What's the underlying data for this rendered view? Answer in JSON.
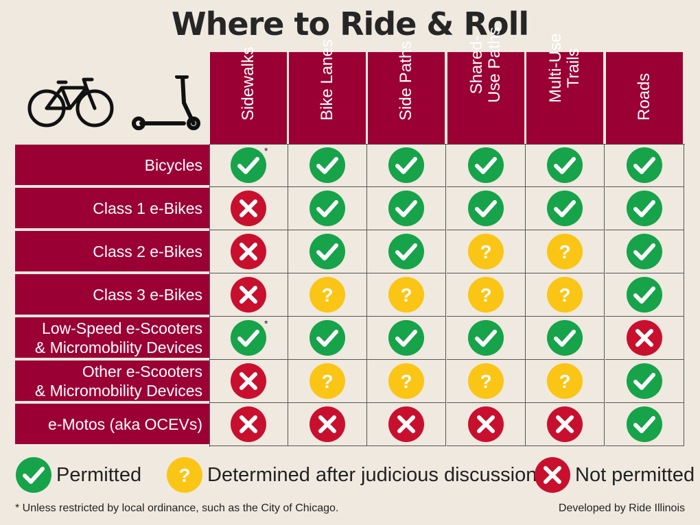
{
  "title": "Where to Ride & Roll",
  "columns": [
    "Sidewalks",
    "Bike Lanes",
    "Side Paths",
    "Shared-\nUse Paths",
    "Multi-Use\nTrails",
    "Roads"
  ],
  "rows": [
    {
      "label": "Bicycles",
      "status": [
        "yes",
        "yes",
        "yes",
        "yes",
        "yes",
        "yes"
      ],
      "asterisk": [
        true,
        false,
        false,
        false,
        false,
        false
      ]
    },
    {
      "label": "Class 1 e-Bikes",
      "status": [
        "no",
        "yes",
        "yes",
        "yes",
        "yes",
        "yes"
      ],
      "asterisk": [
        false,
        false,
        false,
        false,
        false,
        false
      ]
    },
    {
      "label": "Class 2 e-Bikes",
      "status": [
        "no",
        "yes",
        "yes",
        "maybe",
        "maybe",
        "yes"
      ],
      "asterisk": [
        false,
        false,
        false,
        false,
        false,
        false
      ]
    },
    {
      "label": "Class 3 e-Bikes",
      "status": [
        "no",
        "maybe",
        "maybe",
        "maybe",
        "maybe",
        "yes"
      ],
      "asterisk": [
        false,
        false,
        false,
        false,
        false,
        false
      ]
    },
    {
      "label": "Low-Speed e-Scooters\n& Micromobility Devices",
      "status": [
        "yes",
        "yes",
        "yes",
        "yes",
        "yes",
        "no"
      ],
      "asterisk": [
        true,
        false,
        false,
        false,
        false,
        false
      ]
    },
    {
      "label": "Other e-Scooters\n& Micromobility Devices",
      "status": [
        "no",
        "maybe",
        "maybe",
        "maybe",
        "maybe",
        "yes"
      ],
      "asterisk": [
        false,
        false,
        false,
        false,
        false,
        false
      ]
    },
    {
      "label": "e-Motos (aka OCEVs)",
      "status": [
        "no",
        "no",
        "no",
        "no",
        "no",
        "yes"
      ],
      "asterisk": [
        false,
        false,
        false,
        false,
        false,
        false
      ]
    }
  ],
  "asterisk_mark": "*",
  "legend": {
    "permitted": "Permitted",
    "maybe": "Determined after judicious discussion",
    "not_permitted": "Not permitted"
  },
  "footnote": "* Unless restricted by local ordinance, such as the City of Chicago.",
  "credit": "Developed by Ride Illinois",
  "icons": {
    "bicycle": "bicycle-icon",
    "scooter": "scooter-icon",
    "yes": "check-circle-icon",
    "maybe": "question-circle-icon",
    "no": "x-circle-icon"
  },
  "colors": {
    "header": "#9b0035",
    "yes": "#16a34a",
    "maybe": "#fac515",
    "no": "#c8102e",
    "background": "#efe9df"
  }
}
